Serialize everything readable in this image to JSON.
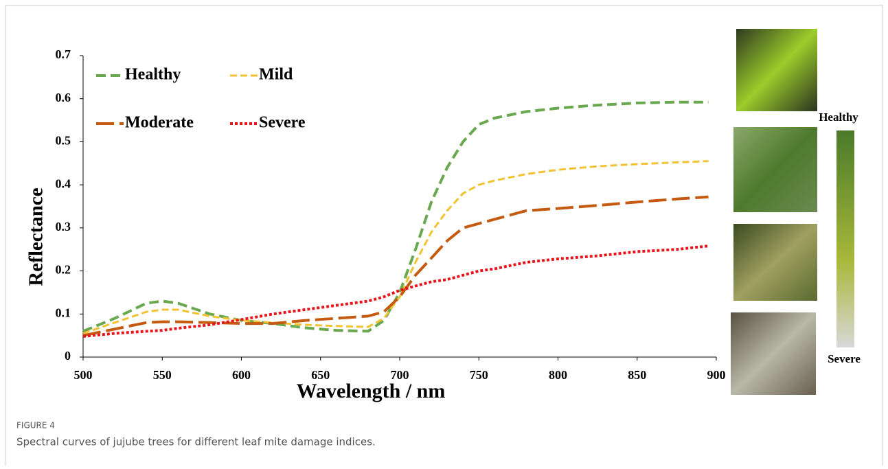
{
  "chart_data": {
    "type": "line",
    "x_label": "Wavelength / nm",
    "y_label": "Reflectance",
    "x": [
      500,
      520,
      540,
      550,
      560,
      580,
      600,
      620,
      640,
      660,
      680,
      690,
      700,
      710,
      720,
      730,
      740,
      750,
      760,
      780,
      800,
      825,
      850,
      875,
      895
    ],
    "series": [
      {
        "name": "Healthy",
        "color": "#6aa84f",
        "values": [
          0.06,
          0.09,
          0.125,
          0.13,
          0.125,
          0.1,
          0.085,
          0.078,
          0.068,
          0.062,
          0.06,
          0.085,
          0.15,
          0.25,
          0.36,
          0.44,
          0.5,
          0.54,
          0.555,
          0.57,
          0.578,
          0.585,
          0.59,
          0.592,
          0.592
        ]
      },
      {
        "name": "Mild",
        "color": "#f1c232",
        "values": [
          0.055,
          0.08,
          0.105,
          0.11,
          0.11,
          0.095,
          0.085,
          0.08,
          0.075,
          0.072,
          0.07,
          0.09,
          0.14,
          0.22,
          0.29,
          0.34,
          0.38,
          0.4,
          0.41,
          0.425,
          0.435,
          0.443,
          0.448,
          0.452,
          0.455
        ]
      },
      {
        "name": "Moderate",
        "color": "#c55a11",
        "values": [
          0.05,
          0.065,
          0.08,
          0.082,
          0.082,
          0.08,
          0.078,
          0.078,
          0.085,
          0.09,
          0.095,
          0.105,
          0.14,
          0.19,
          0.23,
          0.27,
          0.3,
          0.31,
          0.32,
          0.34,
          0.345,
          0.352,
          0.36,
          0.367,
          0.372
        ]
      },
      {
        "name": "Severe",
        "color": "#e8141a",
        "values": [
          0.048,
          0.055,
          0.06,
          0.062,
          0.067,
          0.075,
          0.087,
          0.1,
          0.11,
          0.12,
          0.13,
          0.14,
          0.155,
          0.165,
          0.175,
          0.18,
          0.19,
          0.2,
          0.205,
          0.22,
          0.228,
          0.235,
          0.245,
          0.25,
          0.258
        ]
      }
    ],
    "xlim": [
      500,
      900
    ],
    "xticks": [
      500,
      550,
      600,
      650,
      700,
      750,
      800,
      850,
      900
    ],
    "ylim": [
      0,
      0.7
    ],
    "yticks": [
      0,
      0.1,
      0.2,
      0.3,
      0.4,
      0.5,
      0.6,
      0.7
    ],
    "scale_top_label": "Healthy",
    "scale_bottom_label": "Severe"
  },
  "caption": {
    "label": "FIGURE 4",
    "text": "Spectral curves of jujube trees for different leaf mite damage indices."
  }
}
